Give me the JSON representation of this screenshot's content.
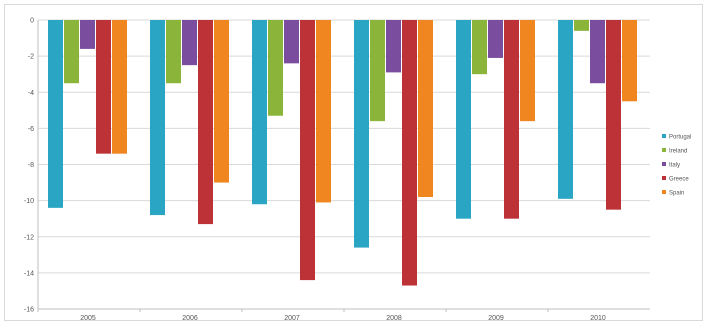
{
  "chart_data": {
    "type": "bar",
    "categories": [
      "2005",
      "2006",
      "2007",
      "2008",
      "2009",
      "2010"
    ],
    "series": [
      {
        "name": "Portugal",
        "color": "#2aa6c4",
        "values": [
          -10.4,
          -10.8,
          -10.2,
          -12.6,
          -11.0,
          -9.9
        ]
      },
      {
        "name": "Ireland",
        "color": "#8bb43a",
        "values": [
          -3.5,
          -3.5,
          -5.3,
          -5.6,
          -3.0,
          -0.6
        ]
      },
      {
        "name": "Italy",
        "color": "#7a4d9e",
        "values": [
          -1.6,
          -2.5,
          -2.4,
          -2.9,
          -2.1,
          -3.5
        ]
      },
      {
        "name": "Greece",
        "color": "#bd3237",
        "values": [
          -7.4,
          -11.3,
          -14.4,
          -14.7,
          -11.0,
          -10.5
        ]
      },
      {
        "name": "Spain",
        "color": "#f0861f",
        "values": [
          -7.4,
          -9.0,
          -10.1,
          -9.8,
          -5.6,
          -4.5
        ]
      }
    ],
    "title": "",
    "xlabel": "",
    "ylabel": "",
    "ylim": [
      -16,
      0
    ],
    "yticks": [
      "0",
      "-2",
      "-4",
      "-6",
      "-8",
      "-10",
      "-12",
      "-14",
      "-16"
    ],
    "grid": true,
    "legend_position": "right"
  }
}
